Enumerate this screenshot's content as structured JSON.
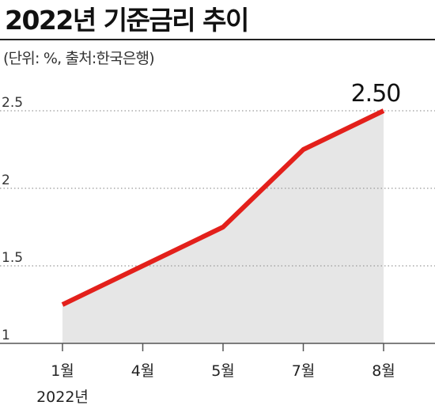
{
  "header": {
    "title": "2022년 기준금리 추이",
    "source": "(단위: %,  출처:한국은행)"
  },
  "chart_data": {
    "type": "area",
    "title": "2022년 기준금리 추이",
    "unit": "%",
    "source": "한국은행",
    "categories": [
      "1월",
      "4월",
      "5월",
      "7월",
      "8월"
    ],
    "values": [
      1.25,
      1.5,
      1.75,
      2.25,
      2.5
    ],
    "y_ticks": [
      "1",
      "1.5",
      "2",
      "2.5"
    ],
    "ylim": [
      1,
      2.5
    ],
    "x_note": "2022년",
    "data_label": "2.50",
    "grid": true,
    "colors": {
      "line": "#e3201b",
      "fill": "#e6e6e6",
      "grid": "#999999",
      "axis": "#555555"
    }
  }
}
